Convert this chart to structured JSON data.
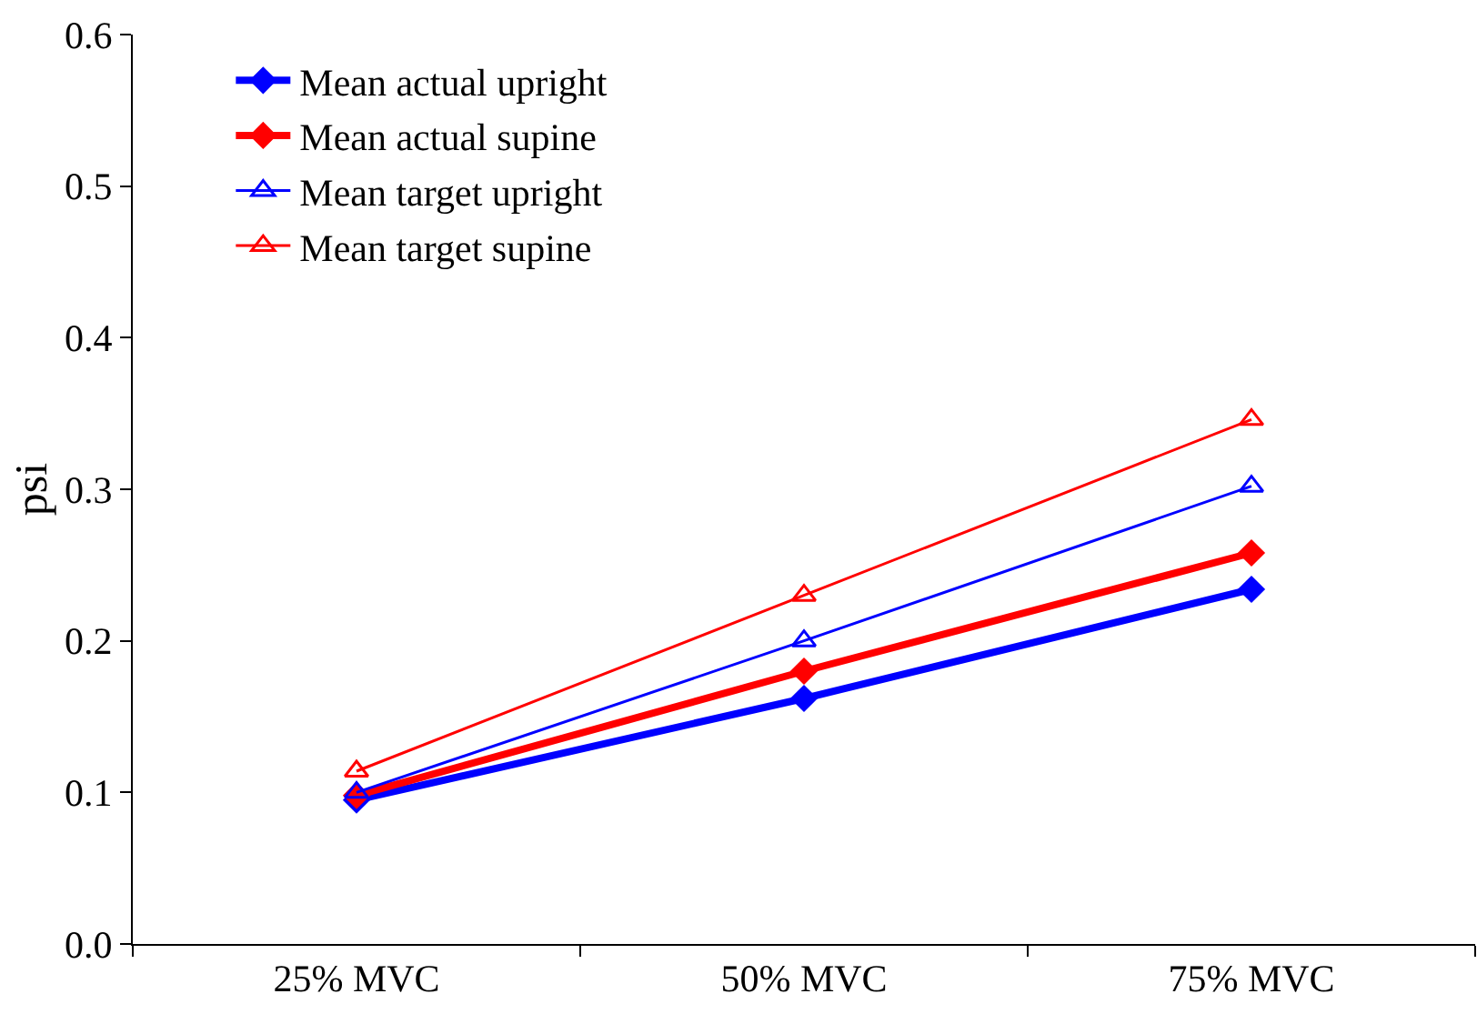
{
  "chart_data": {
    "type": "line",
    "ylabel": "psi",
    "categories": [
      "25% MVC",
      "50% MVC",
      "75% MVC"
    ],
    "ylim": [
      0,
      0.6
    ],
    "yticks": [
      {
        "value": 0,
        "label": "0.0"
      },
      {
        "value": 0.1,
        "label": "0.1"
      },
      {
        "value": 0.2,
        "label": "0.2"
      },
      {
        "value": 0.3,
        "label": "0.3"
      },
      {
        "value": 0.4,
        "label": "0.4"
      },
      {
        "value": 0.5,
        "label": "0.5"
      },
      {
        "value": 0.6,
        "label": "0.6"
      }
    ],
    "legend": "top left",
    "series": [
      {
        "name": "Mean actual upright",
        "color": "#0000ff",
        "marker": "diamond",
        "values": [
          0.095,
          0.162,
          0.234
        ]
      },
      {
        "name": "Mean actual supine",
        "color": "#ff0000",
        "marker": "diamond",
        "values": [
          0.098,
          0.18,
          0.258
        ]
      },
      {
        "name": "Mean target upright",
        "color": "#0000ff",
        "marker": "triangle",
        "values": [
          0.1,
          0.2,
          0.302
        ]
      },
      {
        "name": "Mean target supine",
        "color": "#ff0000",
        "marker": "triangle",
        "values": [
          0.114,
          0.23,
          0.346
        ]
      }
    ]
  }
}
